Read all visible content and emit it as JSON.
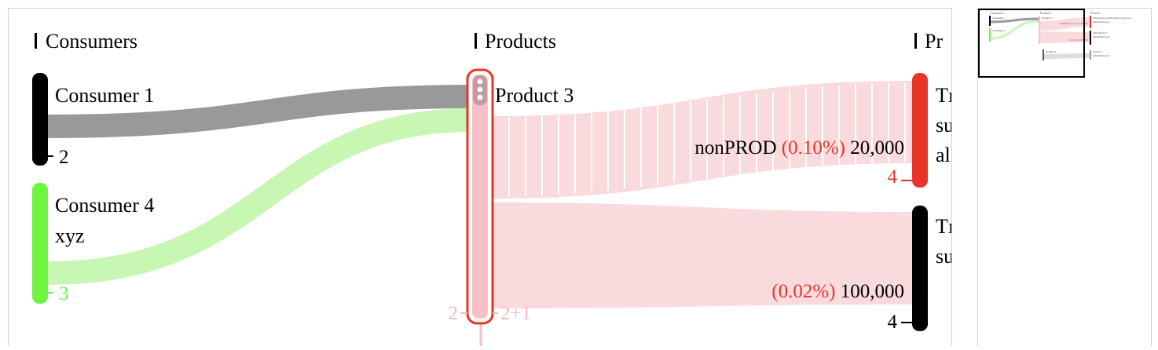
{
  "columns": [
    {
      "label": "Consumers"
    },
    {
      "label": "Products"
    },
    {
      "label": "Pr"
    }
  ],
  "nodes": {
    "consumer1": {
      "label": "Consumer 1",
      "count": "2",
      "color": "#000000"
    },
    "consumer4": {
      "label_lines": [
        "Consumer 4",
        "xyz"
      ],
      "count": "3",
      "color": "#6ef542"
    },
    "product3": {
      "label": "Product 3",
      "count_left": "2",
      "count_right": "2+1",
      "color": "#f4c0c6",
      "outline": "#e8352a"
    },
    "proxy_top": {
      "label_lines": [
        "Tı",
        "su",
        "al"
      ],
      "count": "4",
      "color": "#e8352a"
    },
    "proxy_bottom": {
      "label_lines": [
        "Tı",
        "su"
      ],
      "count": "4",
      "color": "#000000"
    }
  },
  "links": {
    "consumer1_product3": {
      "color": "#999999"
    },
    "consumer4_product3": {
      "color": "#c8f7b4"
    },
    "product3_proxy_top": {
      "env": "nonPROD",
      "pct": "(0.10%)",
      "value": "20,000",
      "color": "#f9dadd"
    },
    "product3_proxy_bottom": {
      "pct": "(0.02%)",
      "value": "100,000",
      "color": "#f9dadd"
    }
  },
  "colors": {
    "pct_text": "#e8352a",
    "header_bar": "#000000",
    "border": "#cfcfcf"
  },
  "minimap": {
    "columns": [
      "Consumers",
      "Products",
      "Proxies"
    ],
    "nodes": [
      "Consumer 1",
      "Consumer 4",
      "Product 3",
      "Product 4",
      "Title Proxy a which has a very lon...",
      "Title Proxy b",
      "Proxy G"
    ],
    "node_subtexts": [
      "subtitle Proxy a",
      "subtitle Proxy b",
      "subtitle Proxy x"
    ],
    "link_labels": [
      "nonPROD (0.10%) 20,000",
      "(0.02%) 100,000"
    ]
  }
}
